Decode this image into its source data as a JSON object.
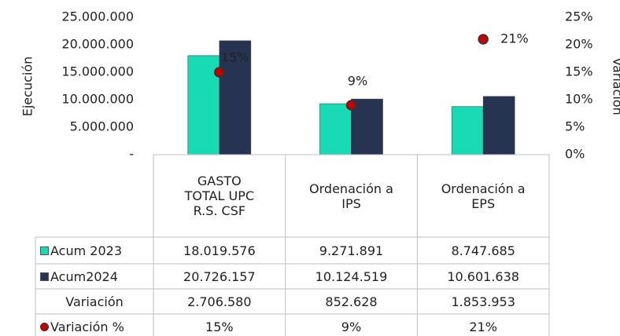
{
  "chart_data": {
    "type": "bar",
    "y_label": "Ejecución",
    "y2_label": "Variación",
    "categories": [
      "GASTO TOTAL UPC R.S. CSF",
      "Ordenación a IPS",
      "Ordenación a EPS"
    ],
    "ylim": [
      0,
      25000000
    ],
    "yticks": [
      {
        "value": 0,
        "label": "-"
      },
      {
        "value": 5000000,
        "label": "5.000.000"
      },
      {
        "value": 10000000,
        "label": "10.000.000"
      },
      {
        "value": 15000000,
        "label": "15.000.000"
      },
      {
        "value": 20000000,
        "label": "20.000.000"
      },
      {
        "value": 25000000,
        "label": "25.000.000"
      }
    ],
    "y2lim": [
      0,
      25
    ],
    "y2ticks": [
      {
        "value": 0,
        "label": "0%"
      },
      {
        "value": 5,
        "label": "5%"
      },
      {
        "value": 10,
        "label": "10%"
      },
      {
        "value": 15,
        "label": "15%"
      },
      {
        "value": 20,
        "label": "20%"
      },
      {
        "value": 25,
        "label": "25%"
      }
    ],
    "series": [
      {
        "name": "Acum 2023",
        "color": "#17dbb5",
        "values": [
          18019576,
          9271891,
          8747685
        ],
        "value_labels": [
          "18.019.576",
          "9.271.891",
          "8.747.685"
        ]
      },
      {
        "name": "Acum2024",
        "color": "#263452",
        "values": [
          20726157,
          10124519,
          10601638
        ],
        "value_labels": [
          "20.726.157",
          "10.124.519",
          "10.601.638"
        ]
      },
      {
        "name": "Variación",
        "values": [
          2706580,
          852628,
          1853953
        ],
        "value_labels": [
          "2.706.580",
          "852.628",
          "1.853.953"
        ]
      },
      {
        "name": "Variación %",
        "type": "scatter",
        "axis": "y2",
        "color": "#c00000",
        "values": [
          15,
          9,
          21
        ],
        "value_labels": [
          "15%",
          "9%",
          "21%"
        ]
      }
    ]
  }
}
